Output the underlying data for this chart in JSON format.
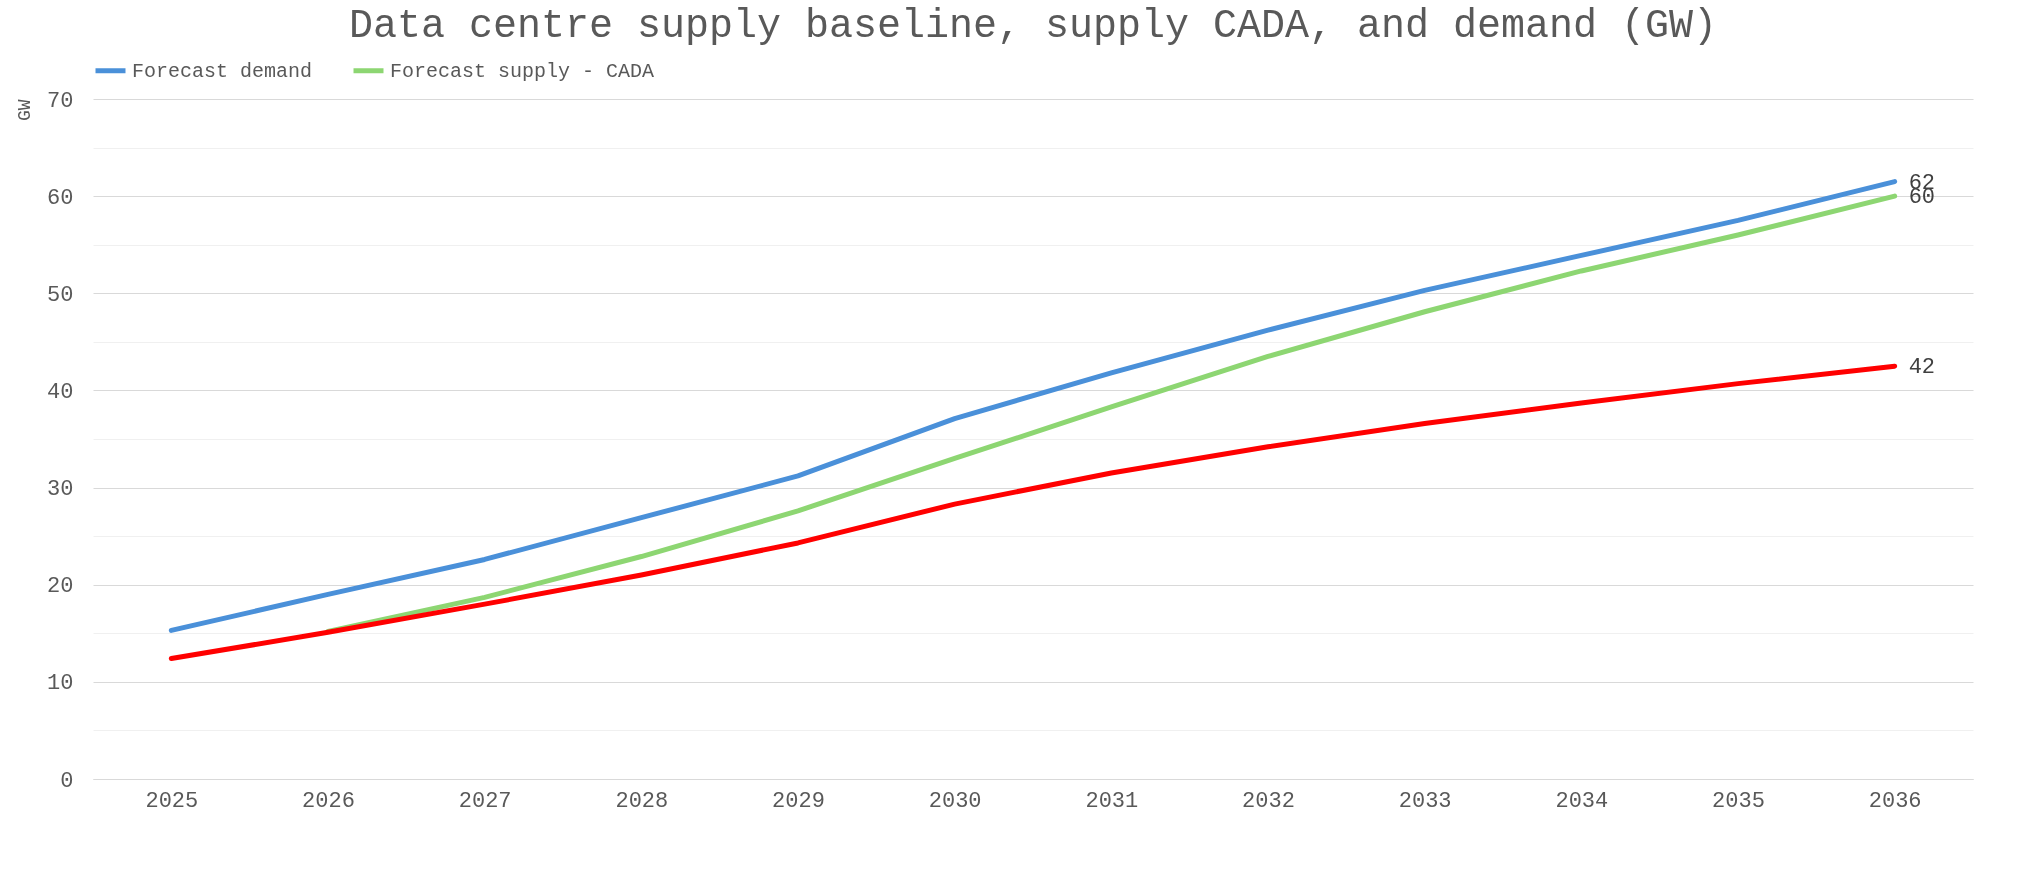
{
  "chart_data": {
    "type": "line",
    "title": "Data centre supply baseline, supply CADA, and demand (GW)",
    "ylabel": "GW",
    "categories": [
      "2025",
      "2026",
      "2027",
      "2028",
      "2029",
      "2030",
      "2031",
      "2032",
      "2033",
      "2034",
      "2035",
      "2036"
    ],
    "series": [
      {
        "name": "Forecast demand",
        "color": "#4a90d9",
        "values": [
          15.3,
          19.0,
          22.6,
          26.9,
          31.2,
          37.1,
          41.8,
          46.2,
          50.3,
          53.9,
          57.5,
          61.5
        ],
        "value_labels": [
          null,
          null,
          null,
          null,
          null,
          null,
          null,
          null,
          null,
          null,
          null,
          "62"
        ]
      },
      {
        "name": "Forecast supply - CADA",
        "color": "#8dd672",
        "values": [
          null,
          15.2,
          18.7,
          22.9,
          27.6,
          33.0,
          38.3,
          43.5,
          48.1,
          52.3,
          56.0,
          60.0
        ],
        "value_labels": [
          null,
          null,
          null,
          null,
          null,
          null,
          null,
          null,
          null,
          null,
          null,
          "60"
        ]
      },
      {
        "color": "#ff0000",
        "values": [
          12.4,
          15.1,
          18.0,
          21.0,
          24.3,
          28.3,
          31.5,
          34.2,
          36.6,
          38.7,
          40.7,
          42.5
        ],
        "value_labels": [
          null,
          null,
          null,
          null,
          null,
          null,
          null,
          null,
          null,
          null,
          null,
          "42"
        ]
      }
    ],
    "ylim": [
      0,
      70
    ],
    "yticks": [
      0,
      {
        "value": 5,
        "label": null
      },
      10,
      {
        "value": 15,
        "label": null
      },
      20,
      {
        "value": 25,
        "label": null
      },
      30,
      {
        "value": 35,
        "label": null
      },
      40,
      {
        "value": 45,
        "label": null
      },
      50,
      {
        "value": 55,
        "label": null
      },
      60,
      {
        "value": 65,
        "label": null
      },
      70
    ],
    "grid": "y",
    "legend": "top",
    "marker": "none",
    "line_style": "solid"
  }
}
